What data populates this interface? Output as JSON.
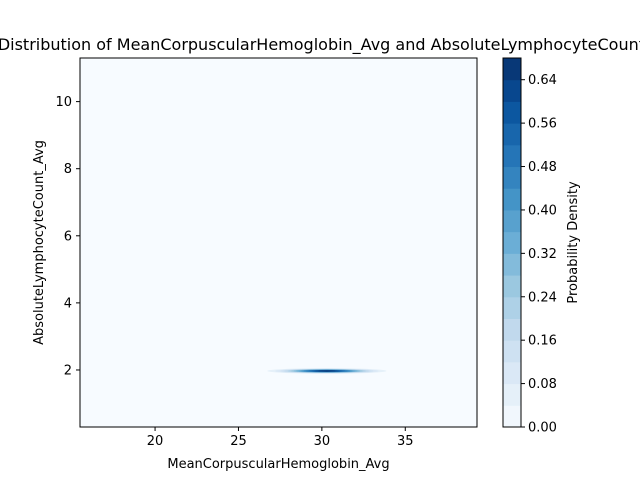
{
  "chart_data": {
    "type": "heatmap",
    "title": "Joint Distribution of MeanCorpuscularHemoglobin_Avg and AbsoluteLymphocyteCount_Avg",
    "xlabel": "MeanCorpuscularHemoglobin_Avg",
    "ylabel": "AbsoluteLymphocyteCount_Avg",
    "xlim": [
      15.5,
      39.3
    ],
    "ylim": [
      0.3,
      11.3
    ],
    "xticks": [
      20,
      25,
      30,
      35
    ],
    "yticks": [
      2,
      4,
      6,
      8,
      10
    ],
    "density_peak": {
      "x": 30.3,
      "y": 1.97,
      "value": 0.68
    },
    "density_spread": {
      "x_sd": 1.5,
      "y_sd": 0.035
    },
    "colorbar": {
      "label": "Probability Density",
      "range": [
        0,
        0.68
      ],
      "ticks": [
        0.0,
        0.08,
        0.16,
        0.24,
        0.32,
        0.4,
        0.48,
        0.56,
        0.64
      ],
      "tick_labels": [
        "0.00",
        "0.08",
        "0.16",
        "0.24",
        "0.32",
        "0.40",
        "0.48",
        "0.56",
        "0.64"
      ],
      "levels": 17,
      "colormap": "Blues"
    },
    "colors": {
      "background": "#f7fbff",
      "peak": "#08306b"
    }
  }
}
